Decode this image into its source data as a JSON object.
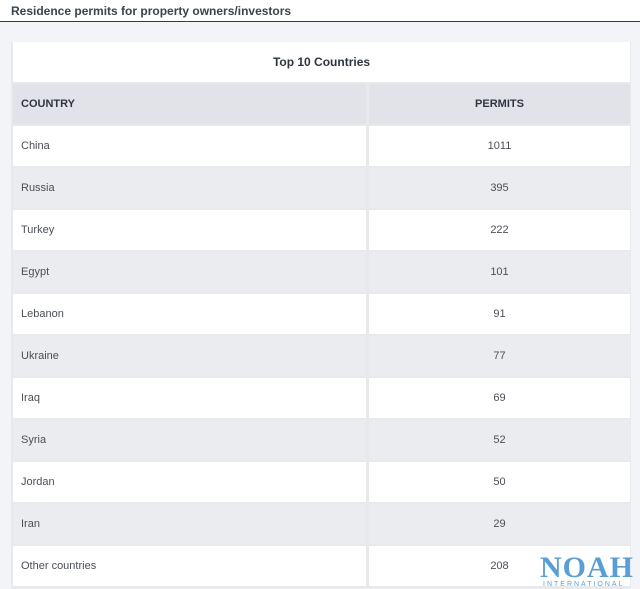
{
  "header": {
    "title": "Residence permits for property owners/investors"
  },
  "table": {
    "caption": "Top 10 Countries",
    "columns": [
      "COUNTRY",
      "PERMITS"
    ],
    "rows": [
      {
        "country": "China",
        "permits": "1011"
      },
      {
        "country": "Russia",
        "permits": "395"
      },
      {
        "country": "Turkey",
        "permits": "222"
      },
      {
        "country": "Egypt",
        "permits": "101"
      },
      {
        "country": "Lebanon",
        "permits": "91"
      },
      {
        "country": "Ukraine",
        "permits": "77"
      },
      {
        "country": "Iraq",
        "permits": "69"
      },
      {
        "country": "Syria",
        "permits": "52"
      },
      {
        "country": "Jordan",
        "permits": "50"
      },
      {
        "country": "Iran",
        "permits": "29"
      },
      {
        "country": "Other countries",
        "permits": "208"
      }
    ]
  },
  "watermark": {
    "brand": "NOAH",
    "sub": "INTERNATIONAL",
    "color": "#5a9ed6"
  }
}
